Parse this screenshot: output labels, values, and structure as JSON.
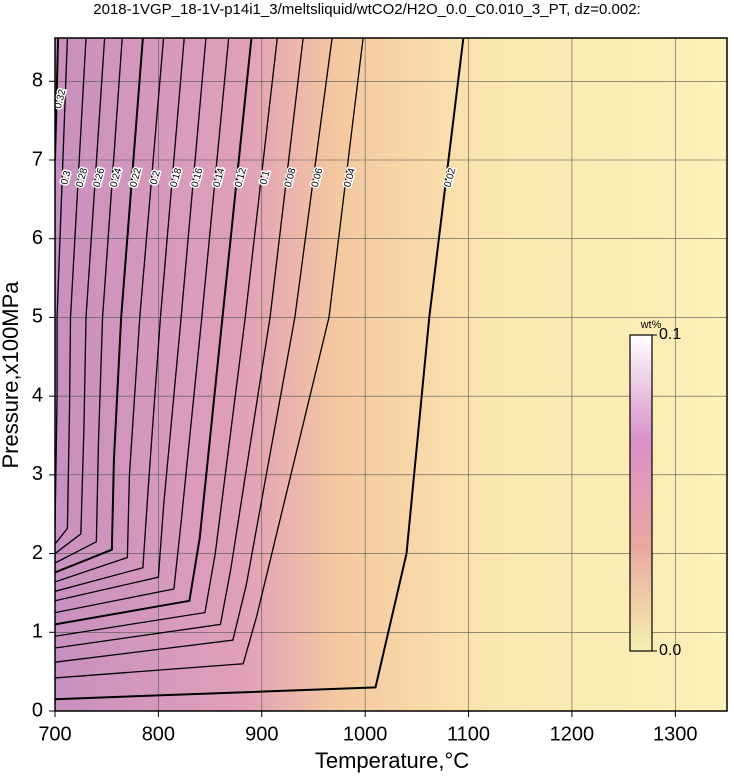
{
  "chart_data": {
    "type": "contour",
    "title": "2018-1VGP_18-1V-p14i1_3/meltsliquid/wtCO2/H2O_0.0_C0.010_3_PT, dz=0.002:",
    "xlabel": "Temperature,°C",
    "ylabel": "Pressure,x100MPa",
    "xlim": [
      700,
      1350
    ],
    "ylim": [
      0,
      8.55
    ],
    "xticks": [
      700,
      800,
      900,
      1000,
      1100,
      1200,
      1300
    ],
    "yticks": [
      0,
      1,
      2,
      3,
      4,
      5,
      6,
      7,
      8
    ],
    "grid": true,
    "line_color": "#000000",
    "contours": [
      {
        "level": 0.02,
        "x": [
          700,
          1010,
          1040,
          1062,
          1095
        ],
        "y": [
          0.15,
          0.3,
          2,
          5,
          8.55
        ]
      },
      {
        "level": 0.04,
        "x": [
          700,
          882,
          895,
          965,
          998
        ],
        "y": [
          0.42,
          0.6,
          1.2,
          5,
          8.55
        ]
      },
      {
        "level": 0.06,
        "x": [
          700,
          872,
          885,
          932,
          968
        ],
        "y": [
          0.62,
          0.9,
          1.6,
          5,
          8.55
        ]
      },
      {
        "level": 0.08,
        "x": [
          700,
          860,
          870,
          908,
          940
        ],
        "y": [
          0.8,
          1.1,
          1.8,
          5,
          8.55
        ]
      },
      {
        "level": 0.1,
        "x": [
          700,
          845,
          855,
          884,
          915
        ],
        "y": [
          0.95,
          1.25,
          2,
          5,
          8.55
        ]
      },
      {
        "level": 0.12,
        "x": [
          700,
          830,
          840,
          862,
          890
        ],
        "y": [
          1.1,
          1.4,
          2.2,
          5,
          8.55
        ]
      },
      {
        "level": 0.14,
        "x": [
          700,
          815,
          822,
          842,
          868
        ],
        "y": [
          1.25,
          1.55,
          2.4,
          5,
          8.55
        ]
      },
      {
        "level": 0.16,
        "x": [
          700,
          800,
          805,
          822,
          846
        ],
        "y": [
          1.4,
          1.7,
          2.6,
          5,
          8.55
        ]
      },
      {
        "level": 0.18,
        "x": [
          700,
          785,
          790,
          802,
          825
        ],
        "y": [
          1.52,
          1.82,
          2.8,
          5,
          8.55
        ]
      },
      {
        "level": 0.2,
        "x": [
          700,
          770,
          772,
          782,
          805
        ],
        "y": [
          1.64,
          1.95,
          3,
          5,
          8.55
        ]
      },
      {
        "level": 0.22,
        "x": [
          700,
          755,
          757,
          764,
          785
        ],
        "y": [
          1.76,
          2.05,
          3.2,
          5,
          8.55
        ]
      },
      {
        "level": 0.24,
        "x": [
          700,
          740,
          742,
          746,
          765
        ],
        "y": [
          1.88,
          2.15,
          3.4,
          5,
          8.55
        ]
      },
      {
        "level": 0.26,
        "x": [
          700,
          725,
          728,
          730,
          748
        ],
        "y": [
          2.0,
          2.25,
          3.6,
          5,
          8.55
        ]
      },
      {
        "level": 0.28,
        "x": [
          700,
          712,
          714,
          715,
          730
        ],
        "y": [
          2.12,
          2.32,
          3.8,
          5,
          8.55
        ]
      },
      {
        "level": 0.3,
        "x": [
          700,
          702,
          702,
          712
        ],
        "y": [
          2.3,
          4,
          5,
          8.55
        ]
      },
      {
        "level": 0.32,
        "x": [
          700,
          703
        ],
        "y": [
          7,
          8.55
        ]
      }
    ],
    "colorbar": {
      "label": "wt%",
      "lim": [
        0,
        0.1
      ],
      "ticks": [
        {
          "value": 0,
          "label": "0.0"
        },
        {
          "value": 0.1,
          "label": "0.1"
        }
      ],
      "colors": [
        "#f5f0b0",
        "#e8a8a0",
        "#d890c8",
        "#ffffff"
      ]
    }
  }
}
